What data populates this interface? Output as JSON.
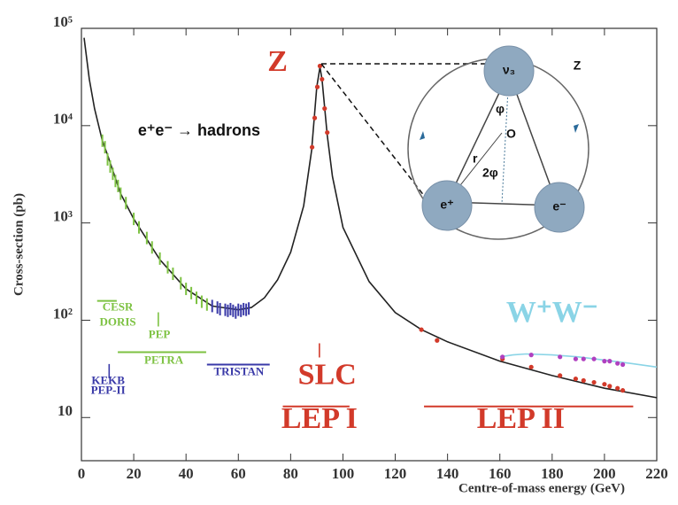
{
  "chart_data": {
    "type": "line",
    "x_label": "Centre-of-mass energy (GeV)",
    "y_label": "Cross-section (pb)",
    "xlim": [
      0,
      220
    ],
    "xticks": [
      0,
      20,
      40,
      60,
      80,
      100,
      120,
      140,
      160,
      180,
      200,
      220
    ],
    "ylim": [
      3.6,
      100000
    ],
    "log_y": true,
    "yticks": [
      {
        "value": 10,
        "label": "10"
      },
      {
        "value": 100,
        "label": "10²"
      },
      {
        "value": 1000,
        "label": "10³"
      },
      {
        "value": 10000,
        "label": "10⁴"
      },
      {
        "value": 100000,
        "label": "10⁵"
      }
    ],
    "series": [
      {
        "mode": "line",
        "color": "#222222",
        "x": [
          1,
          3,
          5,
          8,
          10,
          15,
          20,
          30,
          40,
          50,
          60,
          65,
          70,
          75,
          80,
          85,
          88,
          90,
          91.2,
          92,
          94,
          96,
          100,
          110,
          120,
          130,
          140,
          160,
          180,
          200,
          220
        ],
        "values": [
          80000,
          30000,
          15000,
          7000,
          5000,
          2000,
          1100,
          420,
          210,
          140,
          128,
          135,
          170,
          260,
          500,
          1500,
          5500,
          25000,
          40000,
          30000,
          8000,
          3000,
          900,
          250,
          120,
          80,
          60,
          38,
          27,
          20,
          16
        ]
      },
      {
        "mode": "bar",
        "color": "#7dc242",
        "x": [
          8,
          9,
          10,
          11,
          12,
          13,
          14,
          15,
          17,
          20,
          22,
          25,
          27,
          30,
          33,
          35,
          38,
          40,
          42,
          44,
          46,
          48
        ],
        "values": [
          7000,
          6000,
          4500,
          3800,
          3200,
          2700,
          2400,
          2000,
          1600,
          1100,
          900,
          700,
          560,
          430,
          350,
          300,
          240,
          210,
          190,
          170,
          155,
          145
        ]
      },
      {
        "mode": "bar",
        "color": "#3a3aa8",
        "x": [
          50,
          52,
          53,
          55,
          56,
          57,
          58,
          59,
          60,
          61,
          62,
          63,
          64
        ],
        "values": [
          140,
          135,
          130,
          128,
          125,
          130,
          125,
          120,
          128,
          125,
          130,
          128,
          132
        ]
      },
      {
        "mode": "dot",
        "color": "#d23a2a",
        "x": [
          88.2,
          89.2,
          90.2,
          91.2,
          92,
          93,
          94,
          130,
          136,
          161,
          172,
          183,
          189,
          192,
          196,
          200,
          202,
          205,
          207
        ],
        "values": [
          6000,
          12000,
          25000,
          41000,
          30000,
          15000,
          8500,
          80,
          62,
          40,
          33,
          27,
          25,
          24,
          23,
          22,
          21,
          20,
          19
        ]
      },
      {
        "mode": "line",
        "color": "#8ad4e6",
        "x": [
          160,
          165,
          170,
          180,
          190,
          200,
          210,
          220
        ],
        "values": [
          42,
          44,
          45,
          44,
          42,
          39,
          36,
          33
        ]
      },
      {
        "mode": "dot",
        "color": "#b040c0",
        "x": [
          161,
          172,
          183,
          189,
          192,
          196,
          200,
          202,
          205,
          207
        ],
        "values": [
          42,
          44,
          42,
          40,
          40,
          40,
          38,
          38,
          36,
          35
        ]
      }
    ],
    "process": {
      "text": "e⁺e⁻ → hadrons",
      "x": 45,
      "y": 8700
    },
    "annotations": [
      {
        "text": "Z",
        "x": 75,
        "y": 43000,
        "color": "#d23a2a"
      },
      {
        "text": "W⁺W⁻",
        "x": 180,
        "y": 114,
        "color": "#8ad4e6"
      },
      {
        "text": "SLC",
        "x": 94,
        "y": 26,
        "color": "#d23a2a"
      },
      {
        "text": "LEP I",
        "x": 91,
        "y": 9.2,
        "color": "#d23a2a"
      },
      {
        "text": "LEP II",
        "x": 168,
        "y": 9.2,
        "color": "#d23a2a"
      }
    ],
    "accelerators": [
      {
        "text": "CESR",
        "x": 13.9,
        "y": 134,
        "color": "#7dc242"
      },
      {
        "text": "DORIS",
        "x": 13.9,
        "y": 94,
        "color": "#7dc242"
      },
      {
        "text": "PEP",
        "x": 29.8,
        "y": 70,
        "color": "#7dc242"
      },
      {
        "text": "PETRA",
        "x": 31.5,
        "y": 38,
        "color": "#7dc242"
      },
      {
        "text": "TRISTAN",
        "x": 60.2,
        "y": 29,
        "color": "#3a3aa8"
      },
      {
        "text": "KEKB",
        "x": 10.2,
        "y": 23.5,
        "color": "#3a3aa8"
      },
      {
        "text": "PEP-II",
        "x": 10.2,
        "y": 18.7,
        "color": "#3a3aa8"
      }
    ],
    "ranges": [
      {
        "from": 6,
        "to": 13.5,
        "y": 158,
        "color": "#7dc242"
      },
      {
        "from": 29.4,
        "to": 29.4,
        "y": 102,
        "color": "#7dc242"
      },
      {
        "from": 13.9,
        "to": 47.7,
        "y": 47,
        "color": "#7dc242"
      },
      {
        "from": 48,
        "to": 72,
        "y": 35,
        "color": "#3a3aa8"
      },
      {
        "from": 10.6,
        "to": 10.6,
        "y": 30,
        "color": "#3a3aa8"
      },
      {
        "from": 91,
        "to": 91,
        "y": 49,
        "color": "#d23a2a"
      },
      {
        "from": 77,
        "to": 102.5,
        "y": 13,
        "color": "#d23a2a"
      },
      {
        "from": 131,
        "to": 211,
        "y": 13,
        "color": "#d23a2a"
      }
    ]
  },
  "inset": {
    "labels": {
      "top": "ν₃",
      "z": "Z",
      "phi": "φ",
      "o": "O",
      "r": "r",
      "two_phi": "2φ",
      "left": "e⁺",
      "right": "e⁻"
    }
  }
}
